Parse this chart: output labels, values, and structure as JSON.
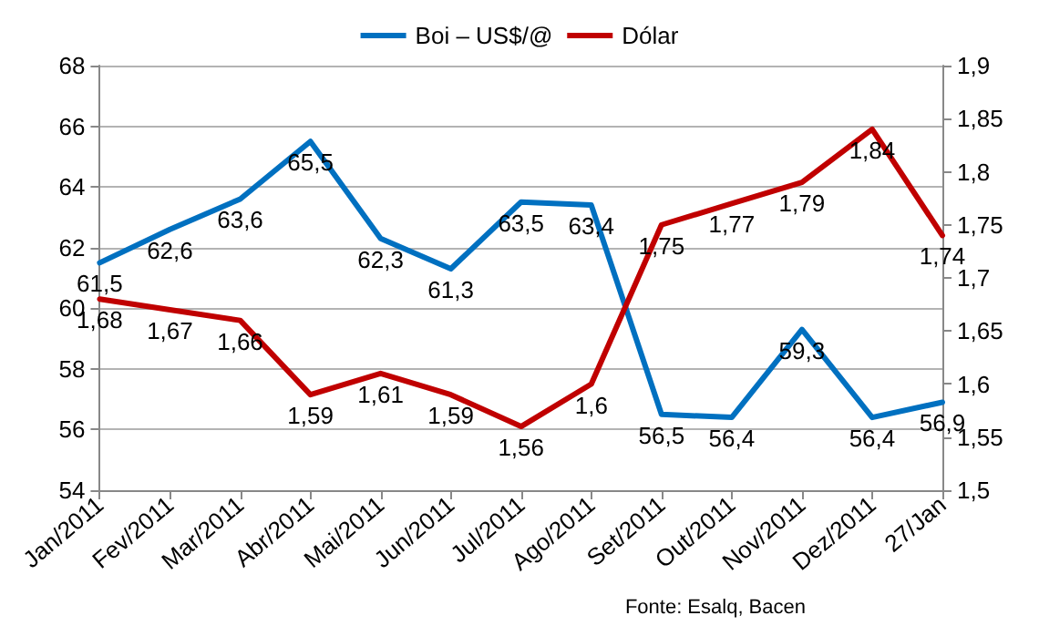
{
  "chart_data": {
    "type": "line",
    "categories": [
      "Jan/2011",
      "Fev/2011",
      "Mar/2011",
      "Abr/2011",
      "Mai/2011",
      "Jun/2011",
      "Jul/2011",
      "Ago/2011",
      "Set/2011",
      "Out/2011",
      "Nov/2011",
      "Dez/2011",
      "27/Jan"
    ],
    "series": [
      {
        "name": "Boi – US$/@",
        "color": "#0070c0",
        "values": [
          61.5,
          62.6,
          63.6,
          65.5,
          62.3,
          61.3,
          63.5,
          63.4,
          56.5,
          56.4,
          59.3,
          56.4,
          56.9
        ],
        "value_labels": [
          "61,5",
          "62,6",
          "63,6",
          "65,5",
          "62,3",
          "61,3",
          "63,5",
          "63,4",
          "56,5",
          "56,4",
          "59,3",
          "56,4",
          "56,9"
        ]
      },
      {
        "name": "Dólar",
        "color": "#c00000",
        "axis": "y2",
        "values": [
          1.68,
          1.67,
          1.66,
          1.59,
          1.61,
          1.59,
          1.56,
          1.6,
          1.75,
          1.77,
          1.79,
          1.84,
          1.74
        ],
        "value_labels": [
          "1,68",
          "1,67",
          "1,66",
          "1,59",
          "1,61",
          "1,59",
          "1,56",
          "1,6",
          "1,75",
          "1,77",
          "1,79",
          "1,84",
          "1,74"
        ]
      }
    ],
    "ylim": [
      54,
      68
    ],
    "yticks": [
      54,
      56,
      58,
      60,
      62,
      64,
      66,
      68
    ],
    "y2lim": [
      1.5,
      1.9
    ],
    "y2ticks": [
      {
        "value": 1.5,
        "label": "1,5"
      },
      {
        "value": 1.55,
        "label": "1,55"
      },
      {
        "value": 1.6,
        "label": "1,6"
      },
      {
        "value": 1.65,
        "label": "1,65"
      },
      {
        "value": 1.7,
        "label": "1,7"
      },
      {
        "value": 1.75,
        "label": "1,75"
      },
      {
        "value": 1.8,
        "label": "1,8"
      },
      {
        "value": 1.85,
        "label": "1,85"
      },
      {
        "value": 1.9,
        "label": "1,9"
      }
    ],
    "grid": "y",
    "legend": "top",
    "marker": "none",
    "line_style": "solid",
    "annotations": [
      "Fonte: Esalq, Bacen"
    ]
  }
}
